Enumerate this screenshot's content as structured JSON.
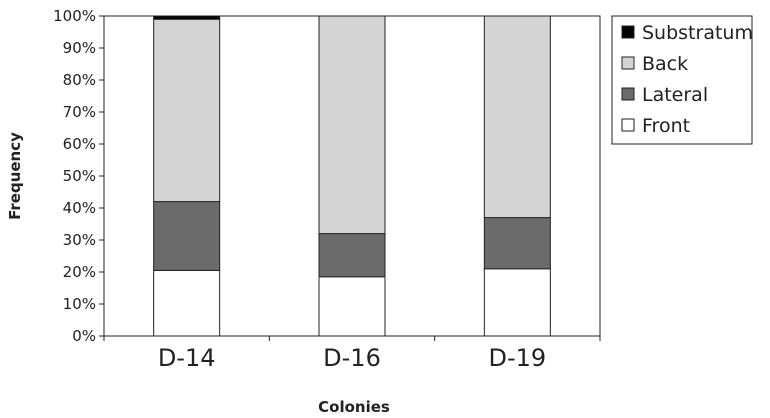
{
  "chart_data": {
    "type": "bar",
    "stacked": true,
    "percent": true,
    "xlabel": "Colonies",
    "ylabel": "Frequency",
    "categories": [
      "D-14",
      "D-16",
      "D-19"
    ],
    "ylim": [
      0,
      100
    ],
    "yticks": [
      "0%",
      "10%",
      "20%",
      "30%",
      "40%",
      "50%",
      "60%",
      "70%",
      "80%",
      "90%",
      "100%"
    ],
    "series": [
      {
        "name": "Front",
        "values": [
          20.5,
          18.5,
          21
        ],
        "color": "#ffffff"
      },
      {
        "name": "Lateral",
        "values": [
          21.5,
          13.5,
          16
        ],
        "color": "#6b6b6b"
      },
      {
        "name": "Back",
        "values": [
          57,
          68,
          63
        ],
        "color": "#d4d4d4"
      },
      {
        "name": "Substratum",
        "values": [
          1,
          0,
          0
        ],
        "color": "#000000"
      }
    ],
    "legend": {
      "position": "right",
      "order": [
        "Substratum",
        "Back",
        "Lateral",
        "Front"
      ]
    },
    "grid": false
  }
}
